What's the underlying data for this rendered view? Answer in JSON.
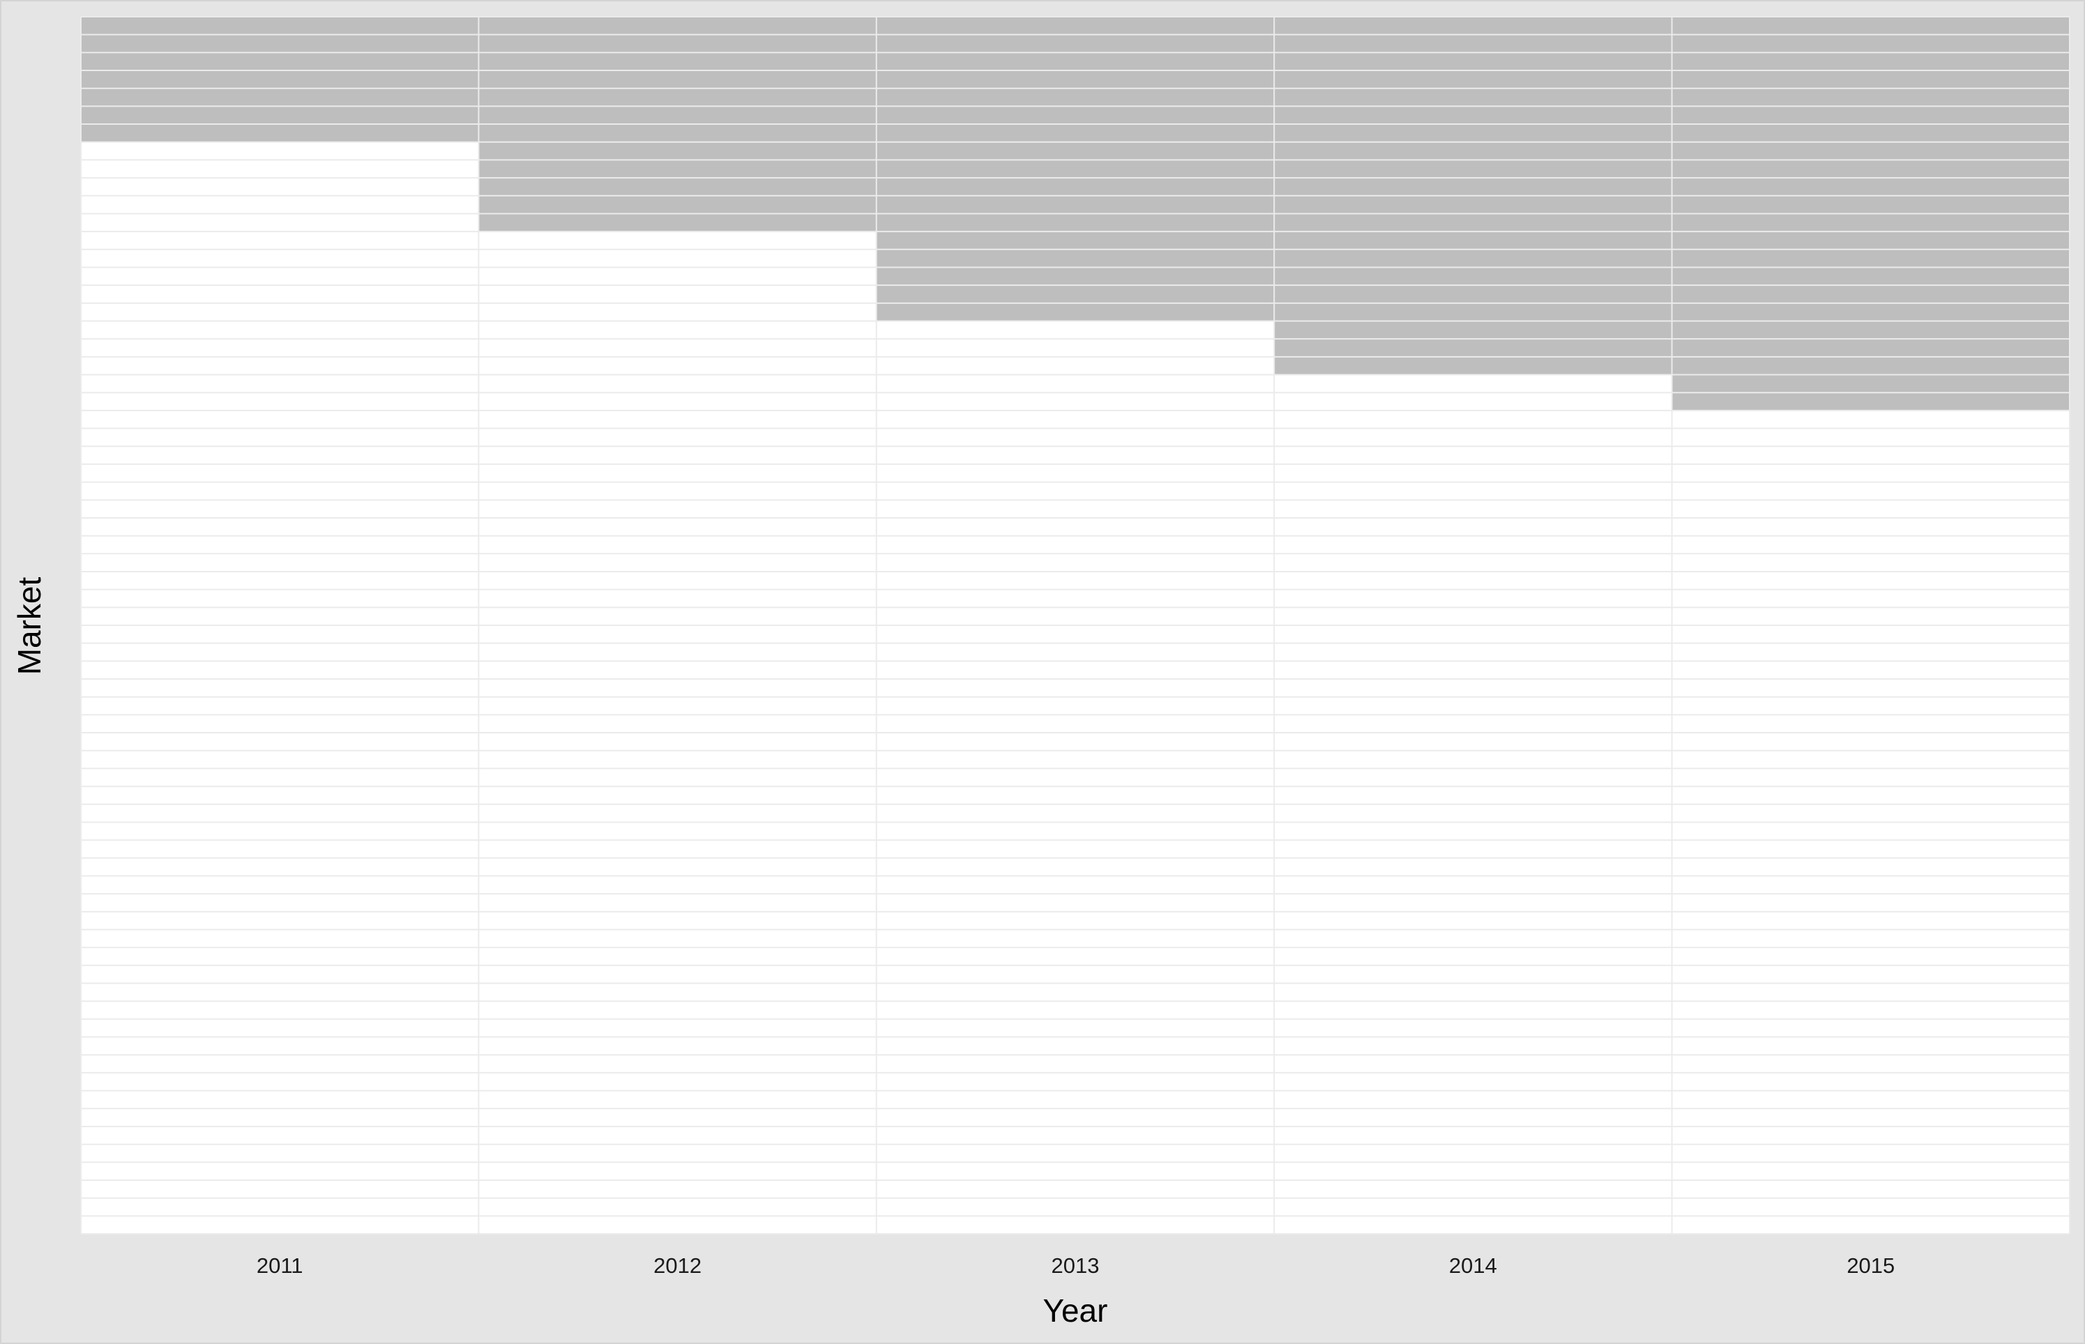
{
  "chart_data": {
    "type": "heatmap",
    "title": "",
    "xlabel": "Year",
    "ylabel": "Market",
    "categories": [
      "2011",
      "2012",
      "2013",
      "2014",
      "2015"
    ],
    "markets_total": 68,
    "series": [
      {
        "name": "",
        "values": [
          7,
          12,
          17,
          20,
          22
        ]
      }
    ],
    "legend": "none",
    "grid": true,
    "colors": {
      "filled": "#bebebe",
      "empty": "#ffffff",
      "grid": "#ebebeb",
      "background": "#e5e5e5"
    }
  }
}
